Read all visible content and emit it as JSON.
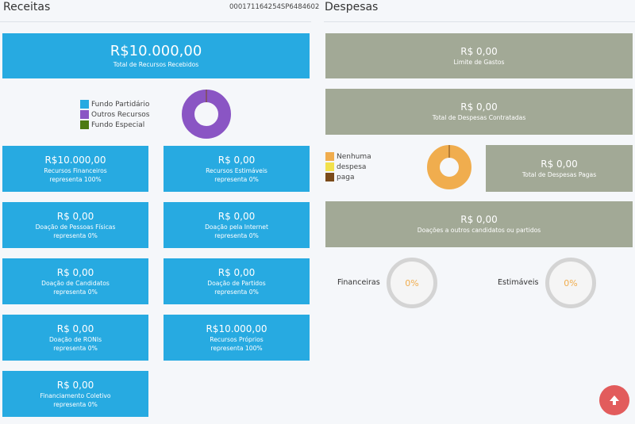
{
  "receitas": {
    "title": "Receitas",
    "code": "000171164254SP6484602",
    "total": {
      "amount": "R$10.000,00",
      "label": "Total de Recursos Recebidos"
    },
    "legend": [
      {
        "label": "Fundo Partidário",
        "color": "#27aae1"
      },
      {
        "label": "Outros Recursos",
        "color": "#8a55c4"
      },
      {
        "label": "Fundo Especial",
        "color": "#4c7a12"
      }
    ],
    "donut": {
      "values": [
        0,
        100,
        0
      ],
      "colors": [
        "#27aae1",
        "#8a55c4",
        "#4c7a12"
      ]
    },
    "cards": [
      {
        "amount": "R$10.000,00",
        "label": "Recursos Financeiros",
        "pct": "representa 100%"
      },
      {
        "amount": "R$ 0,00",
        "label": "Recursos Estimáveis",
        "pct": "representa 0%"
      },
      {
        "amount": "R$ 0,00",
        "label": "Doação de Pessoas Físicas",
        "pct": "representa 0%"
      },
      {
        "amount": "R$ 0,00",
        "label": "Doação pela Internet",
        "pct": "representa 0%"
      },
      {
        "amount": "R$ 0,00",
        "label": "Doação de Candidatos",
        "pct": "representa 0%"
      },
      {
        "amount": "R$ 0,00",
        "label": "Doação de Partidos",
        "pct": "representa 0%"
      },
      {
        "amount": "R$ 0,00",
        "label": "Doação de RONIs",
        "pct": "representa 0%"
      },
      {
        "amount": "R$10.000,00",
        "label": "Recursos Próprios",
        "pct": "representa 100%"
      },
      {
        "amount": "R$ 0,00",
        "label": "Financiamento Coletivo",
        "pct": "representa 0%"
      }
    ]
  },
  "despesas": {
    "title": "Despesas",
    "limite": {
      "amount": "R$ 0,00",
      "label": "Limite de Gastos"
    },
    "contratadas": {
      "amount": "R$ 0,00",
      "label": "Total de Despesas Contratadas"
    },
    "legend": [
      {
        "label": "Nenhuma",
        "color": "#f0ad4e"
      },
      {
        "label": "despesa",
        "color": "#f2e14c"
      },
      {
        "label": "paga",
        "color": "#7a4a1a"
      }
    ],
    "donut": {
      "values": [
        100,
        0,
        0
      ],
      "colors": [
        "#f0ad4e",
        "#f2e14c",
        "#7a4a1a"
      ]
    },
    "pagas": {
      "amount": "R$ 0,00",
      "label": "Total de Despesas Pagas"
    },
    "doacoes": {
      "amount": "R$ 0,00",
      "label": "Doações a outros candidatos ou partidos"
    },
    "gauges": [
      {
        "label": "Financeiras",
        "value": "0%"
      },
      {
        "label": "Estimáveis",
        "value": "0%"
      }
    ]
  },
  "scroll_top_icon": "arrow-up-icon"
}
